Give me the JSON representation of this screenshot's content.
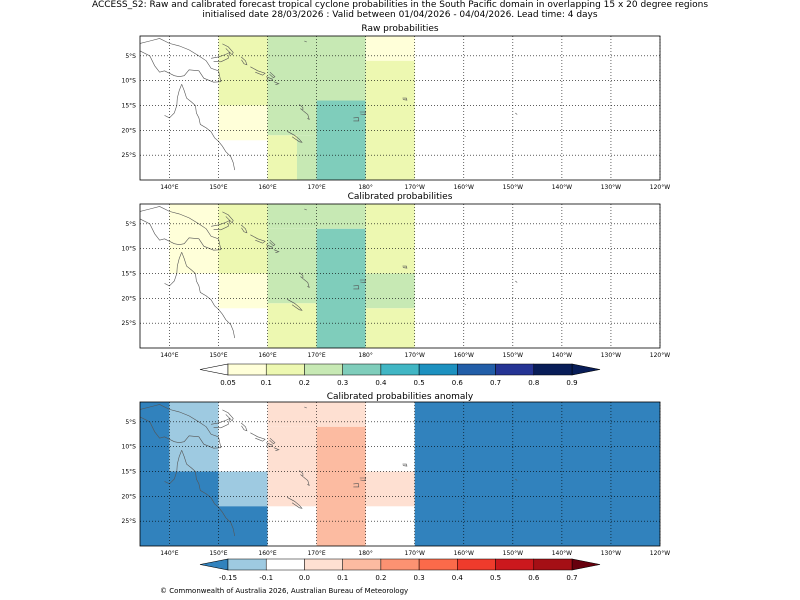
{
  "header": {
    "title_line1": "ACCESS_S2: Raw and calibrated forecast tropical cyclone probabilities in the South Pacific domain in overlapping 15 x 20 degree regions",
    "title_line2": "initialised date 28/03/2026 :  Valid between 01/04/2026 - 04/04/2026. Lead time: 4 days"
  },
  "maps": {
    "lon_range": [
      134,
      240
    ],
    "lat_range": [
      -30,
      -1
    ],
    "lon_ticks": [
      "140°E",
      "150°E",
      "160°E",
      "170°E",
      "180°",
      "170°W",
      "160°W",
      "150°W",
      "140°W",
      "130°W",
      "120°W"
    ],
    "lon_tick_values": [
      140,
      150,
      160,
      170,
      180,
      190,
      200,
      210,
      220,
      230,
      240
    ],
    "lat_ticks": [
      "5°S",
      "10°S",
      "15°S",
      "20°S",
      "25°S"
    ],
    "lat_tick_values": [
      -5,
      -10,
      -15,
      -20,
      -25
    ]
  },
  "panels": [
    {
      "title": "Raw probabilities",
      "cells": [
        {
          "lon": [
            150,
            160
          ],
          "lat": [
            -1,
            -15
          ],
          "value": 0.15
        },
        {
          "lon": [
            150,
            160
          ],
          "lat": [
            -15,
            -22
          ],
          "value": 0.07
        },
        {
          "lon": [
            160,
            180
          ],
          "lat": [
            -1,
            -21
          ],
          "value": 0.25
        },
        {
          "lon": [
            160,
            166
          ],
          "lat": [
            -21,
            -30
          ],
          "value": 0.15
        },
        {
          "lon": [
            166,
            170
          ],
          "lat": [
            -21,
            -30
          ],
          "value": 0.25
        },
        {
          "lon": [
            170,
            180
          ],
          "lat": [
            -14,
            -30
          ],
          "value": 0.35
        },
        {
          "lon": [
            180,
            190
          ],
          "lat": [
            -1,
            -6
          ],
          "value": 0.07
        },
        {
          "lon": [
            180,
            190
          ],
          "lat": [
            -6,
            -30
          ],
          "value": 0.15
        }
      ]
    },
    {
      "title": "Calibrated probabilities",
      "cells": [
        {
          "lon": [
            140,
            150
          ],
          "lat": [
            -1,
            -15
          ],
          "value": 0.07
        },
        {
          "lon": [
            150,
            160
          ],
          "lat": [
            -1,
            -15
          ],
          "value": 0.15
        },
        {
          "lon": [
            150,
            160
          ],
          "lat": [
            -15,
            -22
          ],
          "value": 0.07
        },
        {
          "lon": [
            160,
            180
          ],
          "lat": [
            -1,
            -6
          ],
          "value": 0.25
        },
        {
          "lon": [
            160,
            170
          ],
          "lat": [
            -6,
            -21
          ],
          "value": 0.25
        },
        {
          "lon": [
            160,
            170
          ],
          "lat": [
            -21,
            -30
          ],
          "value": 0.15
        },
        {
          "lon": [
            170,
            180
          ],
          "lat": [
            -6,
            -30
          ],
          "value": 0.35
        },
        {
          "lon": [
            180,
            190
          ],
          "lat": [
            -1,
            -15
          ],
          "value": 0.15
        },
        {
          "lon": [
            180,
            190
          ],
          "lat": [
            -15,
            -22
          ],
          "value": 0.25
        },
        {
          "lon": [
            180,
            190
          ],
          "lat": [
            -22,
            -30
          ],
          "value": 0.15
        }
      ]
    },
    {
      "title": "Calibrated probabilities anomaly",
      "cells": [
        {
          "lon": [
            134,
            140
          ],
          "lat": [
            -1,
            -30
          ],
          "value": -0.2
        },
        {
          "lon": [
            140,
            150
          ],
          "lat": [
            -1,
            -15
          ],
          "value": -0.12
        },
        {
          "lon": [
            140,
            150
          ],
          "lat": [
            -15,
            -30
          ],
          "value": -0.2
        },
        {
          "lon": [
            150,
            160
          ],
          "lat": [
            -15,
            -22
          ],
          "value": -0.12
        },
        {
          "lon": [
            150,
            160
          ],
          "lat": [
            -22,
            -30
          ],
          "value": -0.2
        },
        {
          "lon": [
            160,
            180
          ],
          "lat": [
            -1,
            -6
          ],
          "value": 0.05
        },
        {
          "lon": [
            160,
            170
          ],
          "lat": [
            -6,
            -22
          ],
          "value": 0.05
        },
        {
          "lon": [
            170,
            180
          ],
          "lat": [
            -6,
            -30
          ],
          "value": 0.15
        },
        {
          "lon": [
            180,
            190
          ],
          "lat": [
            -15,
            -22
          ],
          "value": 0.05
        },
        {
          "lon": [
            190,
            240
          ],
          "lat": [
            -1,
            -30
          ],
          "value": -0.2
        }
      ]
    }
  ],
  "colorbar_prob": {
    "labels": [
      "0.05",
      "0.1",
      "0.2",
      "0.3",
      "0.4",
      "0.5",
      "0.6",
      "0.7",
      "0.8",
      "0.9"
    ],
    "colors": [
      "#ffffd9",
      "#edf8b1",
      "#c7e9b4",
      "#7fcdbb",
      "#41b6c4",
      "#1d91c0",
      "#225ea8",
      "#253494",
      "#081d58"
    ],
    "under_color": "#ffffff",
    "over_color": "#081d58"
  },
  "colorbar_anom": {
    "labels": [
      "-0.15",
      "-0.1",
      "0.0",
      "0.1",
      "0.2",
      "0.3",
      "0.4",
      "0.5",
      "0.6",
      "0.7"
    ],
    "colors": [
      "#9ecae1",
      "#ffffff",
      "#fee0d2",
      "#fcbba1",
      "#fc9272",
      "#fb6a4a",
      "#ef3b2c",
      "#cb181d",
      "#a50f15"
    ],
    "under_color": "#3182bd",
    "over_color": "#67000d"
  },
  "footer": "© Commonwealth of Australia 2026, Australian Bureau of Meteorology"
}
